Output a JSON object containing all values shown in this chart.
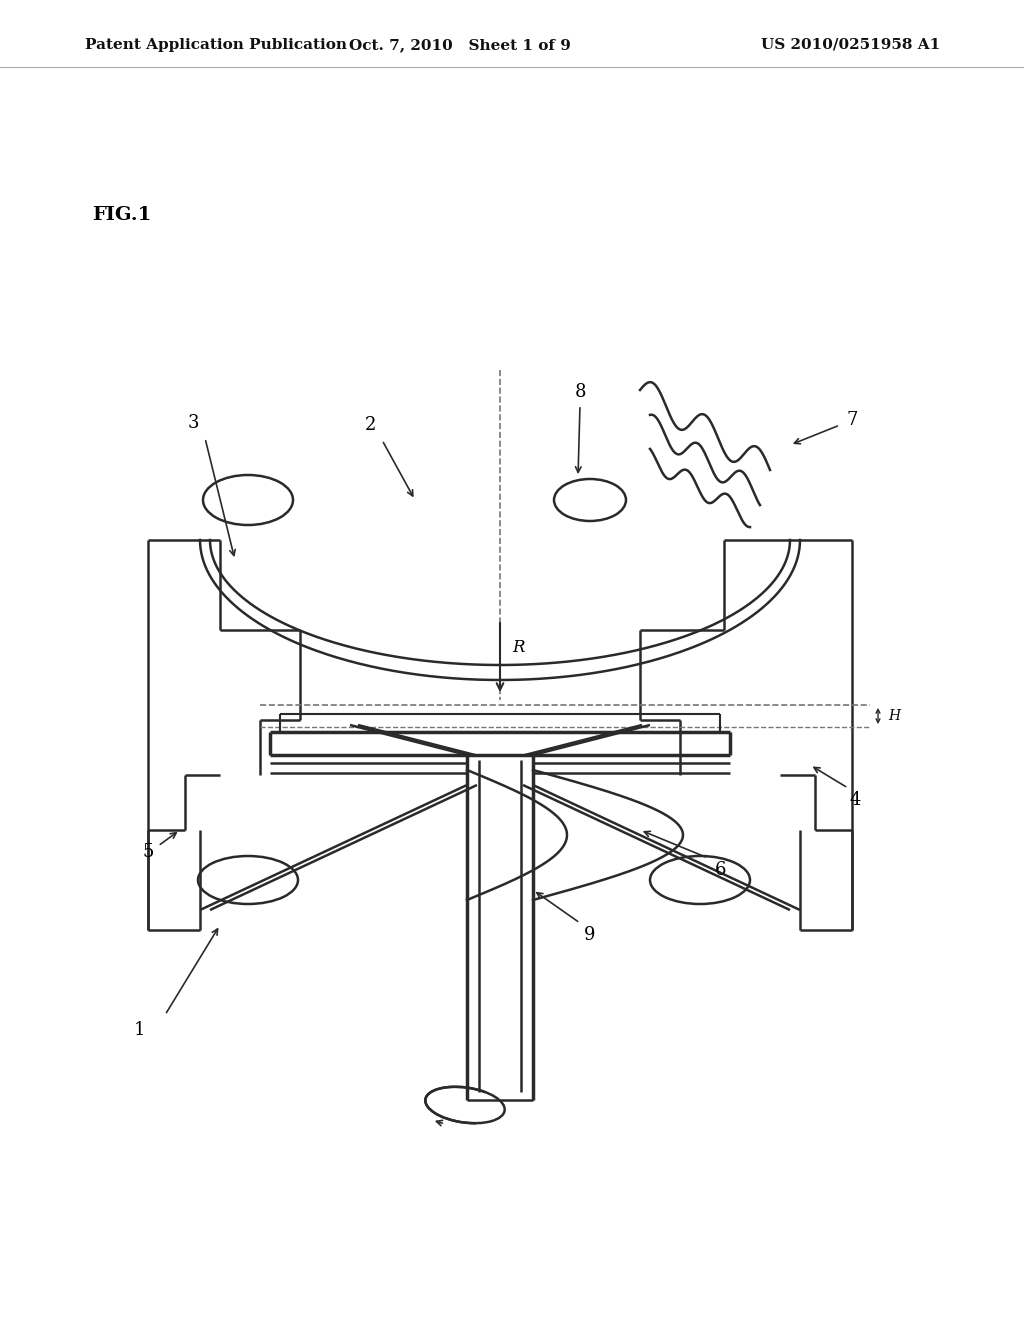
{
  "header_left": "Patent Application Publication",
  "header_mid": "Oct. 7, 2010   Sheet 1 of 9",
  "header_right": "US 2010/0251958 A1",
  "fig_label": "FIG.1",
  "bg": "#ffffff",
  "lc": "#2a2a2a",
  "gray": "#777777"
}
